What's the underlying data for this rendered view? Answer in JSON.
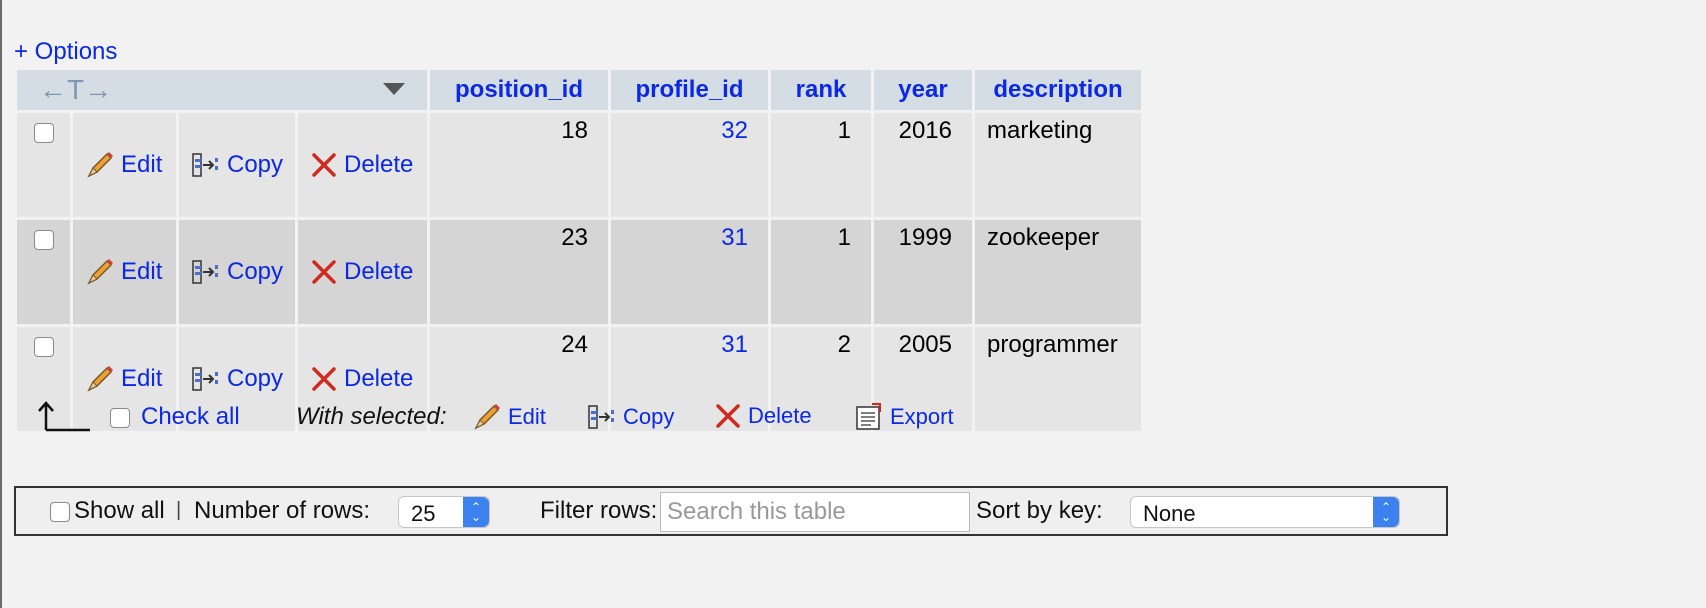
{
  "options_link": "+ Options",
  "columns": [
    "position_id",
    "profile_id",
    "rank",
    "year",
    "description"
  ],
  "actions": {
    "edit": "Edit",
    "copy": "Copy",
    "delete": "Delete"
  },
  "rows": [
    {
      "position_id": "18",
      "profile_id": "32",
      "rank": "1",
      "year": "2016",
      "description": "marketing"
    },
    {
      "position_id": "23",
      "profile_id": "31",
      "rank": "1",
      "year": "1999",
      "description": "zookeeper"
    },
    {
      "position_id": "24",
      "profile_id": "31",
      "rank": "2",
      "year": "2005",
      "description": "programmer"
    }
  ],
  "bulk": {
    "check_all": "Check all",
    "with_selected": "With selected:",
    "edit": "Edit",
    "copy": "Copy",
    "delete": "Delete",
    "export": "Export"
  },
  "filter": {
    "show_all": "Show all",
    "separator": "|",
    "num_rows_label": "Number of rows:",
    "num_rows_value": "25",
    "filter_label": "Filter rows:",
    "filter_placeholder": "Search this table",
    "sort_label": "Sort by key:",
    "sort_value": "None"
  },
  "colors": {
    "link": "#0a28e6",
    "header_bg": "#d4dce4",
    "row_bg": "#e5e5e5",
    "row_alt_bg": "#d5d5d5",
    "delete_icon": "#d02a20"
  },
  "icons": [
    "arrows-t-icon",
    "dropdown-triangle-icon",
    "pencil-icon",
    "copy-icon",
    "delete-x-icon",
    "arrow-up-left-icon",
    "export-icon"
  ]
}
